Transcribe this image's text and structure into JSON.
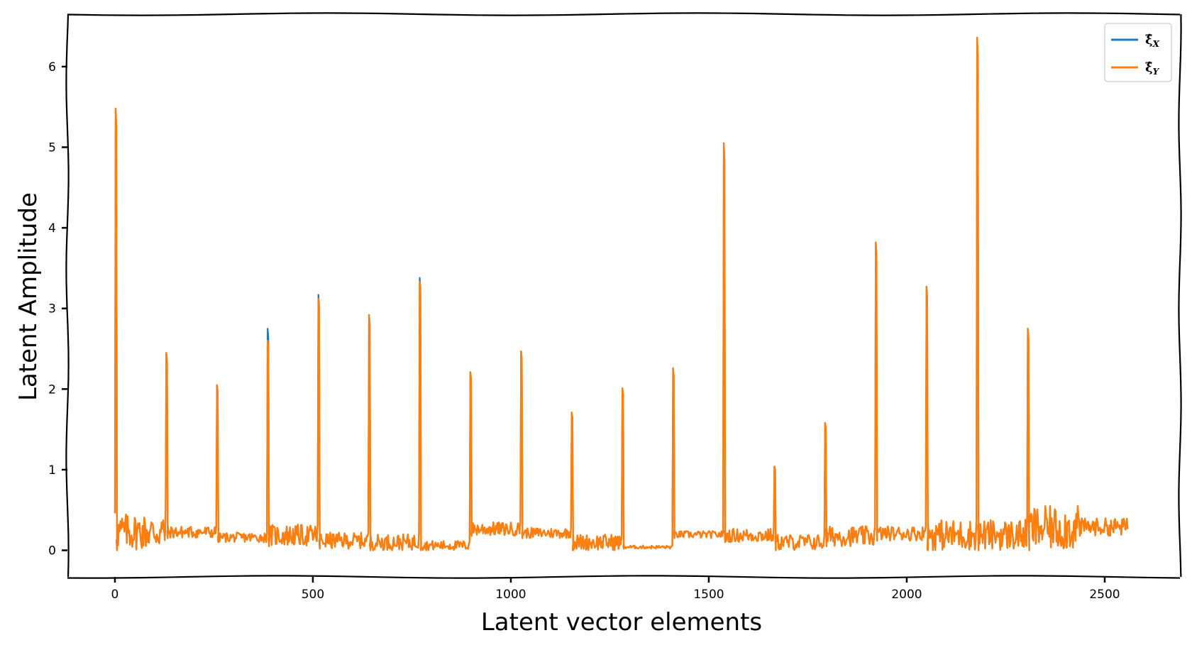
{
  "chart_data": {
    "type": "line",
    "title": "",
    "xlabel": "Latent vector elements",
    "ylabel": "Latent Amplitude",
    "xlim": [
      -120,
      2690
    ],
    "ylim": [
      -0.33,
      6.65
    ],
    "xticks": [
      0,
      500,
      1000,
      1500,
      2000,
      2500
    ],
    "yticks": [
      0,
      1,
      2,
      3,
      4,
      5,
      6
    ],
    "grid": false,
    "legend": "top-right",
    "block_size": 128,
    "series": [
      {
        "name": "ξ̂",
        "subscript": "X",
        "color": "#1f77b4",
        "spikes": [
          5.48,
          2.45,
          2.05,
          2.75,
          3.17,
          2.92,
          3.38,
          2.21,
          2.47,
          1.71,
          2.01,
          2.26,
          5.05,
          1.04,
          1.58,
          3.82,
          3.27,
          6.36,
          2.75,
          0.4
        ],
        "band_low": [
          0.0,
          0.15,
          0.1,
          0.05,
          0.02,
          0.0,
          0.0,
          0.18,
          0.15,
          0.0,
          0.02,
          0.15,
          0.1,
          0.0,
          0.05,
          0.12,
          0.0,
          0.0,
          0.0,
          0.18,
          0.02
        ],
        "band_high": [
          0.46,
          0.3,
          0.22,
          0.32,
          0.22,
          0.2,
          0.12,
          0.35,
          0.28,
          0.2,
          0.06,
          0.24,
          0.27,
          0.2,
          0.3,
          0.3,
          0.38,
          0.38,
          0.55,
          0.4,
          0.4
        ]
      },
      {
        "name": "ξ̂",
        "subscript": "Y",
        "color": "#ff7f0e",
        "spikes": [
          5.48,
          2.45,
          2.05,
          2.6,
          3.12,
          2.92,
          3.33,
          2.21,
          2.47,
          1.71,
          2.01,
          2.26,
          5.05,
          1.04,
          1.58,
          3.82,
          3.27,
          6.36,
          2.75,
          0.4
        ],
        "band_low": [
          0.0,
          0.15,
          0.1,
          0.05,
          0.02,
          0.0,
          0.0,
          0.18,
          0.15,
          0.0,
          0.02,
          0.15,
          0.1,
          0.0,
          0.05,
          0.12,
          0.0,
          0.0,
          0.0,
          0.18,
          0.02
        ],
        "band_high": [
          0.46,
          0.3,
          0.22,
          0.32,
          0.22,
          0.2,
          0.12,
          0.35,
          0.28,
          0.2,
          0.06,
          0.24,
          0.27,
          0.2,
          0.3,
          0.3,
          0.38,
          0.38,
          0.55,
          0.4,
          0.4
        ]
      }
    ]
  }
}
